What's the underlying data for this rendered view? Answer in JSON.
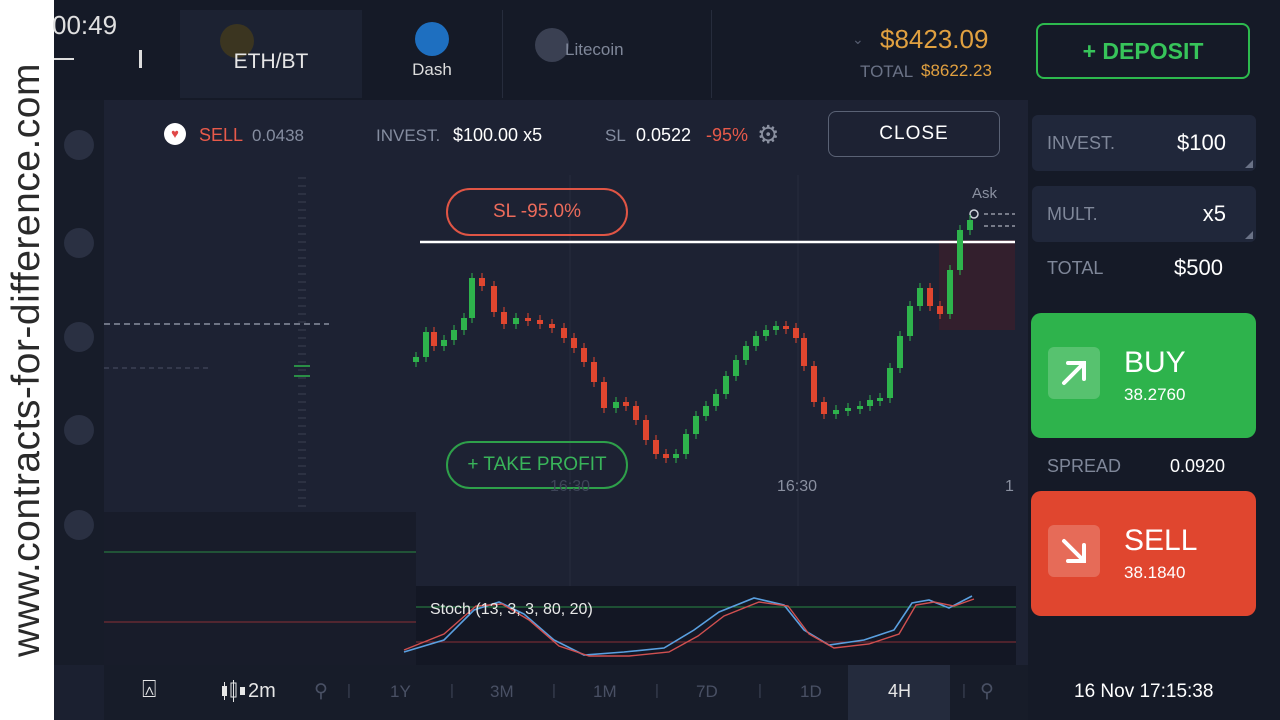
{
  "watermark": "www.contracts-for-difference.com",
  "status": {
    "time": "00:49"
  },
  "tabs": [
    {
      "label": "ETH/BT",
      "icon": "ethereum-coin-icon"
    },
    {
      "label": "Dash",
      "icon": "dash-coin-icon"
    },
    {
      "label": "Litecoin",
      "icon": "litecoin-coin-icon"
    }
  ],
  "account": {
    "balance": "$8423.09",
    "total_label": "TOTAL",
    "total_value": "$8622.23",
    "deposit_label": "+ DEPOSIT"
  },
  "position": {
    "direction": "SELL",
    "entry": "0.0438",
    "invest_label": "INVEST.",
    "invest_value": "$100.00 x5",
    "sl_label": "SL",
    "sl_value": "0.0522",
    "sl_pct": "-95%",
    "close_label": "CLOSE"
  },
  "chart": {
    "sl_badge": "SL -95.0%",
    "tp_badge": "+ TAKE PROFIT",
    "ask_label": "Ask",
    "time_labels": [
      "16:30",
      "16:30",
      "1"
    ],
    "indicator": "Stoch (13, 3, 3, 80, 20)"
  },
  "order": {
    "invest_label": "INVEST.",
    "invest_value": "$100",
    "mult_label": "MULT.",
    "mult_value": "x5",
    "total_label": "TOTAL",
    "total_value": "$500",
    "buy_label": "BUY",
    "buy_price": "38.2760",
    "spread_label": "SPREAD",
    "spread_value": "0.0920",
    "sell_label": "SELL",
    "sell_price": "38.1840"
  },
  "bottom": {
    "interval": "2m",
    "timeframes": [
      "1Y",
      "3M",
      "1M",
      "7D",
      "1D"
    ],
    "active_timeframe": "4H",
    "datetime": "16 Nov 17:15:38"
  },
  "colors": {
    "up": "#2eb34c",
    "down": "#e0462f",
    "accent": "#e0a040",
    "background": "#1d2233"
  }
}
